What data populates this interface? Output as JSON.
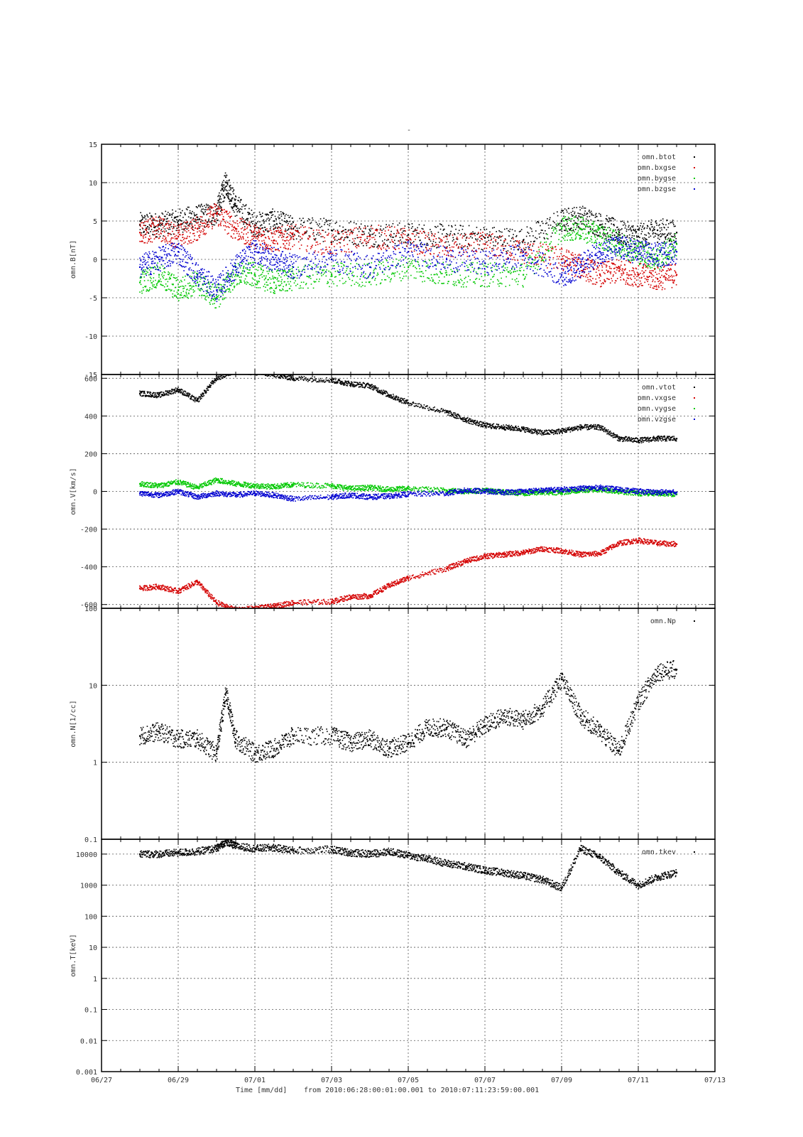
{
  "figure": {
    "title": "-",
    "xlabel": "Time [mm/dd]",
    "range_label": "from 2010:06:28:00:01:00.001  to  2010:07:11:23:59:00.001",
    "x_ticks": [
      "06/27",
      "06/29",
      "07/01",
      "07/03",
      "07/05",
      "07/07",
      "07/09",
      "07/11",
      "07/13"
    ],
    "colors": {
      "black": "#000000",
      "red": "#d40000",
      "green": "#00c800",
      "blue": "#0000d0"
    }
  },
  "chart_data": [
    {
      "type": "scatter",
      "ylabel": "omn.B[nT]",
      "ylim": [
        -15,
        15
      ],
      "yscale": "linear",
      "y_ticks": [
        "15",
        "10",
        "5",
        "0",
        "-5",
        "-10",
        "-15"
      ],
      "grid": true,
      "legend_position": "top-right",
      "series": [
        {
          "name": "omn.btot",
          "color": "#000000",
          "x": [
            "06/28",
            "06/28 12h",
            "06/29",
            "06/29 12h",
            "06/30",
            "06/30 06h",
            "06/30 12h",
            "07/01",
            "07/01 12h",
            "07/02",
            "07/03",
            "07/04",
            "07/05",
            "07/06",
            "07/07",
            "07/08",
            "07/09",
            "07/09 12h",
            "07/10",
            "07/10 12h",
            "07/11",
            "07/11 12h",
            "07/12"
          ],
          "values": [
            4.5,
            4.5,
            5,
            5.5,
            6,
            10,
            7,
            4.5,
            5,
            4,
            3.8,
            3.2,
            3.2,
            3,
            2.8,
            2.5,
            5,
            5.5,
            4.5,
            3.5,
            3,
            3.8,
            3.5
          ]
        },
        {
          "name": "omn.bxgse",
          "color": "#d40000",
          "x": [
            "06/28",
            "06/28 12h",
            "06/29",
            "06/29 12h",
            "06/30",
            "06/30 12h",
            "07/01",
            "07/01 12h",
            "07/02",
            "07/03",
            "07/04",
            "07/05",
            "07/06",
            "07/07",
            "07/08",
            "07/09",
            "07/09 12h",
            "07/10",
            "07/10 12h",
            "07/11",
            "07/11 12h",
            "07/12"
          ],
          "values": [
            3.5,
            4,
            3,
            4,
            6,
            4,
            3,
            2.5,
            3,
            2,
            3,
            2.5,
            1.5,
            2,
            1,
            0,
            -1,
            -2,
            -1.5,
            -2,
            -2.5,
            -2
          ]
        },
        {
          "name": "omn.bygse",
          "color": "#00c800",
          "x": [
            "06/28",
            "06/28 12h",
            "06/29",
            "06/29 12h",
            "06/30",
            "06/30 12h",
            "07/01",
            "07/01 12h",
            "07/02",
            "07/03",
            "07/04",
            "07/05",
            "07/06",
            "07/07",
            "07/08",
            "07/09",
            "07/09 12h",
            "07/10",
            "07/10 12h",
            "07/11",
            "07/11 12h",
            "07/12"
          ],
          "values": [
            -3,
            -2,
            -4,
            -3,
            -5,
            -2,
            -2,
            -3,
            -2.5,
            -2,
            -2,
            -1,
            -2,
            -2,
            -2,
            4,
            4,
            3,
            2,
            1,
            0,
            2
          ]
        },
        {
          "name": "omn.bzgse",
          "color": "#0000d0",
          "x": [
            "06/28",
            "06/28 12h",
            "06/29",
            "06/29 12h",
            "06/30",
            "06/30 12h",
            "07/01",
            "07/01 12h",
            "07/02",
            "07/03",
            "07/04",
            "07/05",
            "07/06",
            "07/07",
            "07/08",
            "07/09",
            "07/09 12h",
            "07/10",
            "07/10 12h",
            "07/11",
            "07/11 12h",
            "07/12"
          ],
          "values": [
            -1,
            0,
            1,
            -2,
            -4,
            -1,
            1,
            0,
            -1,
            0,
            -1,
            1,
            0,
            -0.5,
            0.5,
            -2,
            -1,
            1,
            1.5,
            1,
            0.5,
            1
          ]
        }
      ]
    },
    {
      "type": "scatter",
      "ylabel": "omn.V[km/s]",
      "ylim": [
        -620,
        620
      ],
      "yscale": "linear",
      "y_ticks": [
        "600",
        "400",
        "200",
        "0",
        "-200",
        "-400",
        "-600"
      ],
      "grid": true,
      "legend_position": "top-right",
      "series": [
        {
          "name": "omn.vtot",
          "color": "#000000",
          "x": [
            "06/28",
            "06/28 12h",
            "06/29",
            "06/29 12h",
            "06/30",
            "06/30 12h",
            "07/01",
            "07/01 12h",
            "07/02",
            "07/03",
            "07/03 12h",
            "07/04",
            "07/04 12h",
            "07/05",
            "07/06",
            "07/06 12h",
            "07/07",
            "07/07 12h",
            "07/08",
            "07/08 12h",
            "07/09",
            "07/09 12h",
            "07/10",
            "07/10 12h",
            "07/11",
            "07/11 12h",
            "07/12"
          ],
          "values": [
            520,
            510,
            540,
            480,
            600,
            640,
            630,
            620,
            600,
            590,
            570,
            560,
            510,
            470,
            420,
            380,
            350,
            340,
            330,
            310,
            320,
            340,
            340,
            280,
            270,
            280,
            280
          ]
        },
        {
          "name": "omn.vxgse",
          "color": "#d40000",
          "x": [
            "06/28",
            "06/28 12h",
            "06/29",
            "06/29 12h",
            "06/30",
            "06/30 12h",
            "07/01",
            "07/01 12h",
            "07/02",
            "07/03",
            "07/03 12h",
            "07/04",
            "07/04 12h",
            "07/05",
            "07/06",
            "07/06 12h",
            "07/07",
            "07/07 12h",
            "07/08",
            "07/08 12h",
            "07/09",
            "07/09 12h",
            "07/10",
            "07/10 12h",
            "07/11",
            "07/11 12h",
            "07/12"
          ],
          "values": [
            -515,
            -505,
            -530,
            -480,
            -590,
            -630,
            -620,
            -610,
            -590,
            -585,
            -560,
            -555,
            -500,
            -460,
            -410,
            -370,
            -345,
            -335,
            -325,
            -305,
            -315,
            -335,
            -330,
            -275,
            -260,
            -275,
            -280
          ]
        },
        {
          "name": "omn.vygse",
          "color": "#00c800",
          "x": [
            "06/28",
            "06/28 12h",
            "06/29",
            "06/29 12h",
            "06/30",
            "06/30 12h",
            "07/01",
            "07/01 12h",
            "07/02",
            "07/03",
            "07/03 12h",
            "07/04",
            "07/04 12h",
            "07/05",
            "07/06",
            "07/06 12h",
            "07/07",
            "07/07 12h",
            "07/08",
            "07/08 12h",
            "07/09",
            "07/09 12h",
            "07/10",
            "07/10 12h",
            "07/11",
            "07/11 12h",
            "07/12"
          ],
          "values": [
            40,
            30,
            50,
            20,
            60,
            40,
            30,
            25,
            35,
            30,
            15,
            20,
            10,
            15,
            5,
            0,
            5,
            -5,
            -10,
            -5,
            -5,
            5,
            10,
            0,
            -10,
            -10,
            -15
          ]
        },
        {
          "name": "omn.vzgse",
          "color": "#0000d0",
          "x": [
            "06/28",
            "06/28 12h",
            "06/29",
            "06/29 12h",
            "06/30",
            "06/30 12h",
            "07/01",
            "07/01 12h",
            "07/02",
            "07/03",
            "07/03 12h",
            "07/04",
            "07/04 12h",
            "07/05",
            "07/06",
            "07/06 12h",
            "07/07",
            "07/07 12h",
            "07/08",
            "07/08 12h",
            "07/09",
            "07/09 12h",
            "07/10",
            "07/10 12h",
            "07/11",
            "07/11 12h",
            "07/12"
          ],
          "values": [
            -10,
            -20,
            0,
            -30,
            -10,
            -20,
            -10,
            -20,
            -40,
            -30,
            -20,
            -30,
            -25,
            -15,
            -10,
            5,
            0,
            -5,
            0,
            5,
            10,
            15,
            20,
            10,
            0,
            -5,
            -5
          ]
        }
      ]
    },
    {
      "type": "scatter",
      "ylabel": "omn.N[1/cc]",
      "ylim": [
        0.1,
        100
      ],
      "yscale": "log",
      "y_ticks": [
        "100",
        "10",
        "1",
        "0.1"
      ],
      "grid": true,
      "legend_position": "top-right",
      "series": [
        {
          "name": "omn.Np",
          "color": "#000000",
          "x": [
            "06/28",
            "06/28 12h",
            "06/29",
            "06/29 12h",
            "06/30",
            "06/30 06h",
            "06/30 12h",
            "07/01",
            "07/01 12h",
            "07/02",
            "07/03",
            "07/03 12h",
            "07/04",
            "07/04 12h",
            "07/05",
            "07/05 12h",
            "07/06",
            "07/06 12h",
            "07/07",
            "07/07 12h",
            "07/08",
            "07/08 12h",
            "07/09",
            "07/09 12h",
            "07/10",
            "07/10 12h",
            "07/11",
            "07/11 12h",
            "07/12"
          ],
          "values": [
            2.2,
            2.5,
            2,
            2,
            1.3,
            8,
            2,
            1.3,
            1.5,
            2.2,
            2.2,
            1.8,
            2,
            1.5,
            1.8,
            2.8,
            2.8,
            2,
            3,
            4,
            3.5,
            5,
            12,
            4,
            2.5,
            1.4,
            6,
            15,
            16
          ]
        }
      ]
    },
    {
      "type": "scatter",
      "ylabel": "omn.T[keV]",
      "ylim": [
        0.001,
        30000
      ],
      "yscale": "log",
      "y_ticks": [
        "10000",
        "1000",
        "100",
        "10",
        "1",
        "0.1",
        "0.01",
        "0.001"
      ],
      "grid": true,
      "legend_position": "top-right",
      "series": [
        {
          "name": "omn.tkev",
          "color": "#000000",
          "x": [
            "06/28",
            "06/28 12h",
            "06/29",
            "06/29 12h",
            "06/30",
            "06/30 06h",
            "06/30 12h",
            "07/01",
            "07/01 12h",
            "07/02",
            "07/03",
            "07/03 12h",
            "07/04",
            "07/04 12h",
            "07/05",
            "07/05 12h",
            "07/06",
            "07/06 12h",
            "07/07",
            "07/07 12h",
            "07/08",
            "07/08 12h",
            "07/09",
            "07/09 12h",
            "07/10",
            "07/10 12h",
            "07/11",
            "07/11 12h",
            "07/12"
          ],
          "values": [
            10000,
            10000,
            11000,
            12000,
            15000,
            25000,
            18000,
            15000,
            16000,
            13000,
            14000,
            11000,
            10000,
            12000,
            9000,
            7000,
            5000,
            4000,
            3000,
            2500,
            2000,
            1500,
            800,
            15000,
            8000,
            2500,
            1000,
            1800,
            2500
          ]
        }
      ]
    }
  ]
}
